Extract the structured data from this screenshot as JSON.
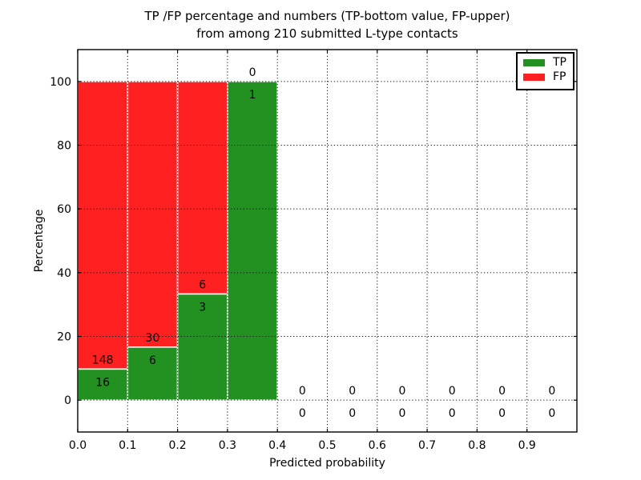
{
  "figure": {
    "background": "#ffffff"
  },
  "chart_data": {
    "type": "bar",
    "stacked": true,
    "title": "TP /FP percentage and numbers (TP-bottom value, FP-upper)\nfrom among 210 submitted L-type contacts",
    "xlabel": "Predicted probability",
    "ylabel": "Percentage",
    "xlim": [
      0.0,
      1.0
    ],
    "ylim": [
      -10,
      110
    ],
    "grid": true,
    "gridline_style": "dotted",
    "total_submitted": 210,
    "xticks": [
      0.0,
      0.1,
      0.2,
      0.3,
      0.4,
      0.5,
      0.6,
      0.7,
      0.8,
      0.9
    ],
    "xtick_labels": [
      "0.0",
      "0.1",
      "0.2",
      "0.3",
      "0.4",
      "0.5",
      "0.6",
      "0.7",
      "0.8",
      "0.9"
    ],
    "yticks": [
      0,
      20,
      40,
      60,
      80,
      100
    ],
    "ytick_labels": [
      "0",
      "20",
      "40",
      "60",
      "80",
      "100"
    ],
    "series": [
      {
        "name": "TP",
        "color": "#229121",
        "position": "bottom"
      },
      {
        "name": "FP",
        "color": "#ff2121",
        "position": "top"
      }
    ],
    "bins": [
      {
        "x0": 0.0,
        "x1": 0.1,
        "tp": 16,
        "fp": 148,
        "tp_pct": 9.76,
        "fp_pct": 90.24
      },
      {
        "x0": 0.1,
        "x1": 0.2,
        "tp": 6,
        "fp": 30,
        "tp_pct": 16.67,
        "fp_pct": 83.33
      },
      {
        "x0": 0.2,
        "x1": 0.3,
        "tp": 3,
        "fp": 6,
        "tp_pct": 33.33,
        "fp_pct": 66.67
      },
      {
        "x0": 0.3,
        "x1": 0.4,
        "tp": 1,
        "fp": 0,
        "tp_pct": 100,
        "fp_pct": 0
      },
      {
        "x0": 0.4,
        "x1": 0.5,
        "tp": 0,
        "fp": 0,
        "tp_pct": 0,
        "fp_pct": 0
      },
      {
        "x0": 0.5,
        "x1": 0.6,
        "tp": 0,
        "fp": 0,
        "tp_pct": 0,
        "fp_pct": 0
      },
      {
        "x0": 0.6,
        "x1": 0.7,
        "tp": 0,
        "fp": 0,
        "tp_pct": 0,
        "fp_pct": 0
      },
      {
        "x0": 0.7,
        "x1": 0.8,
        "tp": 0,
        "fp": 0,
        "tp_pct": 0,
        "fp_pct": 0
      },
      {
        "x0": 0.8,
        "x1": 0.9,
        "tp": 0,
        "fp": 0,
        "tp_pct": 0,
        "fp_pct": 0
      },
      {
        "x0": 0.9,
        "x1": 1.0,
        "tp": 0,
        "fp": 0,
        "tp_pct": 0,
        "fp_pct": 0
      }
    ],
    "legend": {
      "position": "upper right",
      "entries": [
        {
          "label": "TP",
          "color": "#229121"
        },
        {
          "label": "FP",
          "color": "#ff2121"
        }
      ]
    }
  }
}
